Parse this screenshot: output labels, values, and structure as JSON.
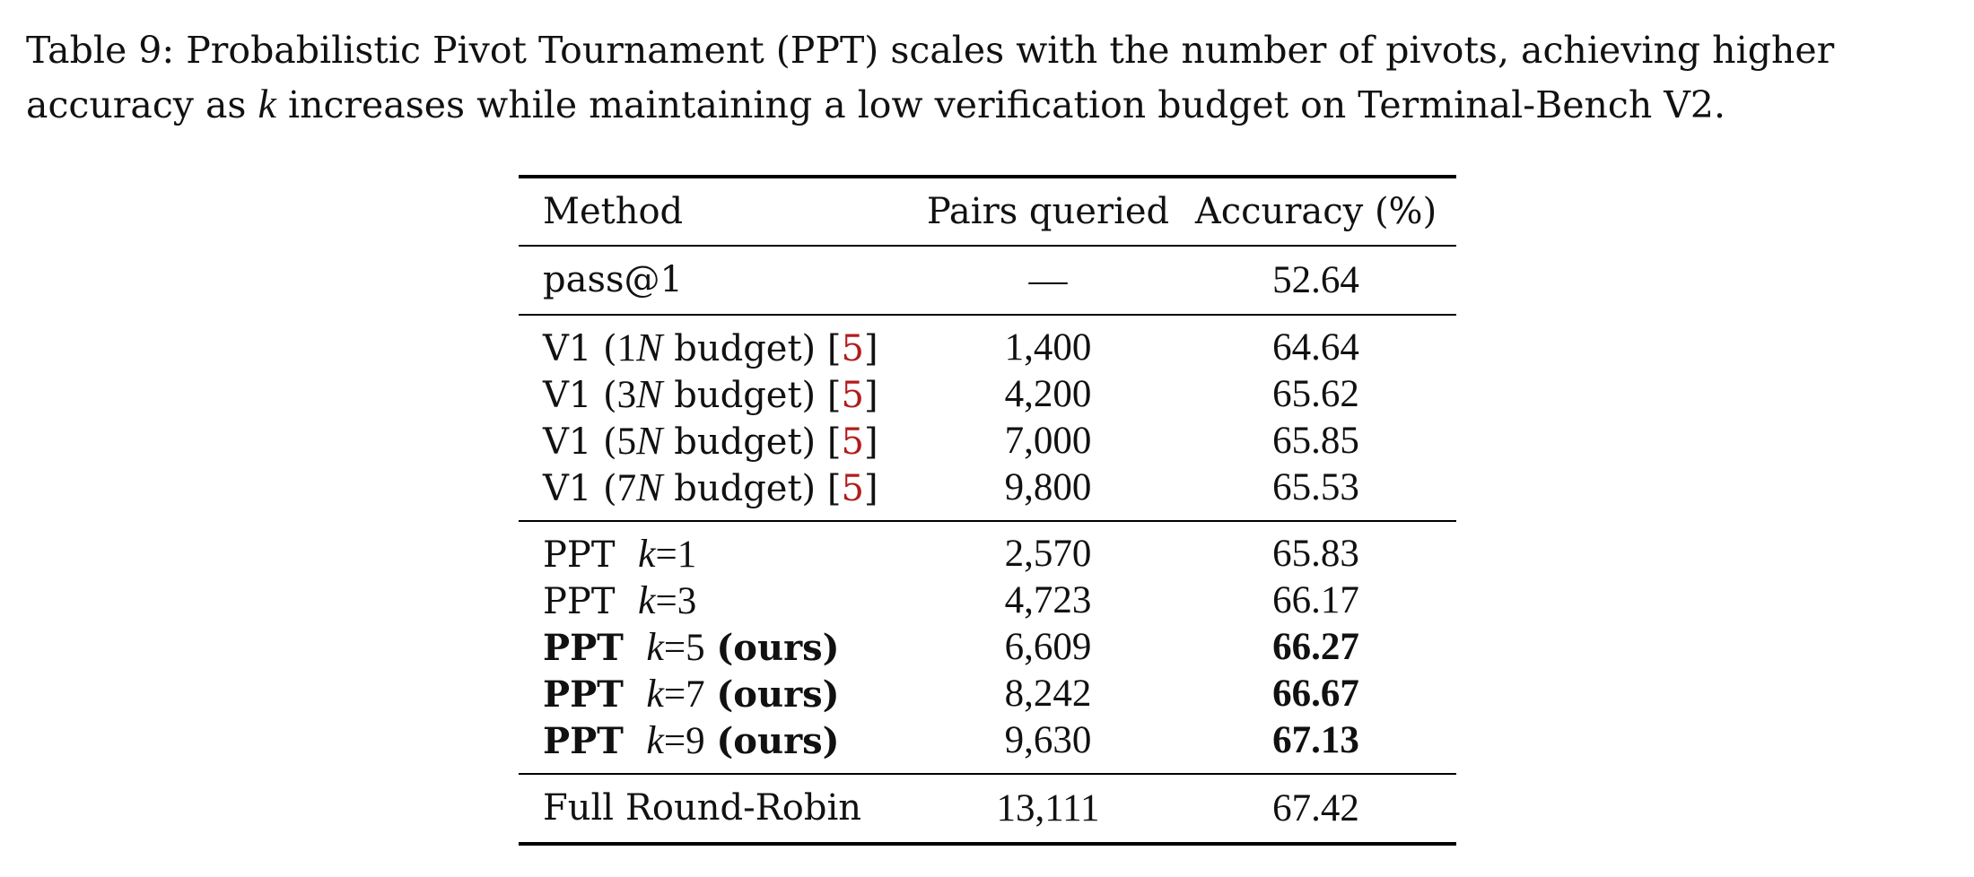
{
  "caption": {
    "part1": "Table 9: Probabilistic Pivot Tournament (PPT) scales with the number of pivots, achieving higher accuracy as ",
    "var_k": "k",
    "part2": " increases while maintaining a low verification budget on Terminal-Bench V2."
  },
  "table": {
    "headers": {
      "method": "Method",
      "pairs": "Pairs queried",
      "accuracy": "Accuracy (%)"
    },
    "baseline": {
      "method": "pass@1",
      "pairs": "—",
      "accuracy": "52.64"
    },
    "v1_rows": [
      {
        "prefix": "V1 (",
        "mult": "1",
        "var": "N",
        "suffix": " budget) [",
        "cite": "5",
        "close": "]",
        "pairs": "1,400",
        "accuracy": "64.64"
      },
      {
        "prefix": "V1 (",
        "mult": "3",
        "var": "N",
        "suffix": " budget) [",
        "cite": "5",
        "close": "]",
        "pairs": "4,200",
        "accuracy": "65.62"
      },
      {
        "prefix": "V1 (",
        "mult": "5",
        "var": "N",
        "suffix": " budget) [",
        "cite": "5",
        "close": "]",
        "pairs": "7,000",
        "accuracy": "65.85"
      },
      {
        "prefix": "V1 (",
        "mult": "7",
        "var": "N",
        "suffix": " budget) [",
        "cite": "5",
        "close": "]",
        "pairs": "9,800",
        "accuracy": "65.53"
      }
    ],
    "ppt_rows": [
      {
        "name": "PPT",
        "var": "k",
        "eq": "=1",
        "ours": "",
        "pairs": "2,570",
        "accuracy": "65.83"
      },
      {
        "name": "PPT",
        "var": "k",
        "eq": "=3",
        "ours": "",
        "pairs": "4,723",
        "accuracy": "66.17"
      },
      {
        "name": "PPT",
        "var": "k",
        "eq": "=5",
        "ours": "(ours)",
        "pairs": "6,609",
        "accuracy": "66.27"
      },
      {
        "name": "PPT",
        "var": "k",
        "eq": "=7",
        "ours": "(ours)",
        "pairs": "8,242",
        "accuracy": "66.67"
      },
      {
        "name": "PPT",
        "var": "k",
        "eq": "=9",
        "ours": "(ours)",
        "pairs": "9,630",
        "accuracy": "67.13"
      }
    ],
    "full": {
      "method": "Full Round-Robin",
      "pairs": "13,111",
      "accuracy": "67.42"
    }
  },
  "colors": {
    "citation": "#b21c1c"
  }
}
